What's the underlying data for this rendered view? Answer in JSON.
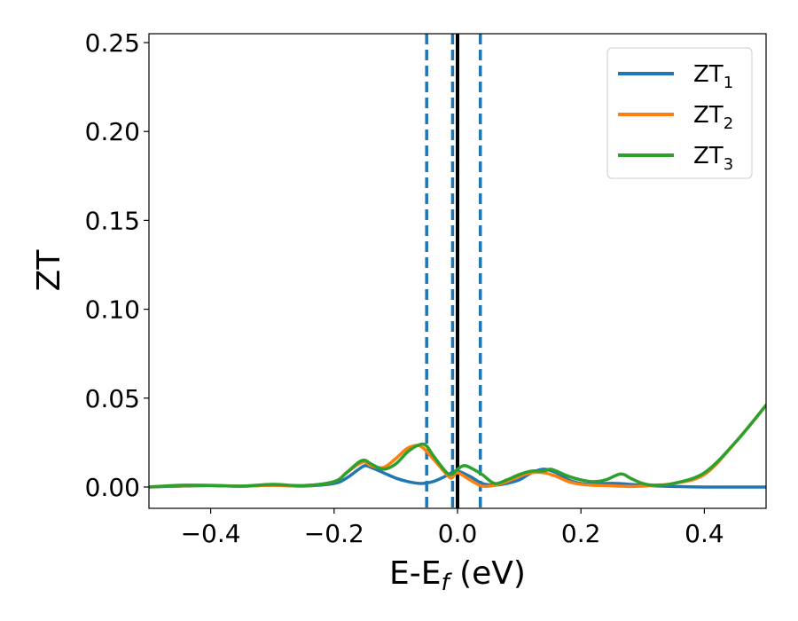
{
  "chart_data": {
    "type": "line",
    "xlabel": "E-E",
    "xlabel_sub": "f",
    "xlabel_unit": " (eV)",
    "ylabel": "ZT",
    "xlim": [
      -0.5,
      0.5
    ],
    "ylim": [
      -0.012,
      0.255
    ],
    "x_ticks": [
      -0.4,
      -0.2,
      0.0,
      0.2,
      0.4
    ],
    "x_tick_labels": [
      "−0.4",
      "−0.2",
      "0.0",
      "0.2",
      "0.4"
    ],
    "y_ticks": [
      0.0,
      0.05,
      0.1,
      0.15,
      0.2,
      0.25
    ],
    "y_tick_labels": [
      "0.00",
      "0.05",
      "0.10",
      "0.15",
      "0.20",
      "0.25"
    ],
    "grid": false,
    "legend_position": "top-right",
    "vertical_lines": [
      {
        "x": -0.05,
        "style": "dashed",
        "color": "#1f77b4"
      },
      {
        "x": -0.008,
        "style": "dashed",
        "color": "#1f77b4"
      },
      {
        "x": 0.037,
        "style": "dashed",
        "color": "#1f77b4"
      },
      {
        "x": 0.0,
        "style": "solid",
        "color": "#000000"
      }
    ],
    "series": [
      {
        "name": "ZT",
        "sub": "1",
        "color": "#1f77b4",
        "x": [
          -0.5,
          -0.45,
          -0.4,
          -0.35,
          -0.3,
          -0.25,
          -0.2,
          -0.18,
          -0.16,
          -0.15,
          -0.14,
          -0.12,
          -0.1,
          -0.08,
          -0.06,
          -0.04,
          -0.02,
          -0.01,
          0.0,
          0.02,
          0.04,
          0.06,
          0.08,
          0.1,
          0.12,
          0.14,
          0.16,
          0.18,
          0.2,
          0.22,
          0.24,
          0.26,
          0.28,
          0.3,
          0.35,
          0.4,
          0.45,
          0.5
        ],
        "y": [
          0.0,
          0.0005,
          0.0008,
          0.0005,
          0.001,
          0.0005,
          0.002,
          0.005,
          0.01,
          0.012,
          0.011,
          0.008,
          0.005,
          0.003,
          0.002,
          0.003,
          0.006,
          0.008,
          0.009,
          0.006,
          0.002,
          0.001,
          0.002,
          0.004,
          0.008,
          0.01,
          0.008,
          0.004,
          0.002,
          0.0015,
          0.002,
          0.002,
          0.0015,
          0.001,
          0.0003,
          0.0,
          0.0,
          0.0
        ]
      },
      {
        "name": "ZT",
        "sub": "2",
        "color": "#ff7f0e",
        "x": [
          -0.5,
          -0.45,
          -0.4,
          -0.35,
          -0.3,
          -0.25,
          -0.2,
          -0.18,
          -0.16,
          -0.15,
          -0.14,
          -0.12,
          -0.1,
          -0.08,
          -0.06,
          -0.04,
          -0.02,
          -0.01,
          0.0,
          0.02,
          0.04,
          0.06,
          0.08,
          0.1,
          0.12,
          0.14,
          0.16,
          0.18,
          0.2,
          0.22,
          0.24,
          0.26,
          0.28,
          0.3,
          0.32,
          0.35,
          0.4,
          0.45,
          0.5
        ],
        "y": [
          0.0,
          0.0008,
          0.001,
          0.0005,
          0.001,
          0.0006,
          0.003,
          0.008,
          0.013,
          0.014,
          0.012,
          0.011,
          0.016,
          0.022,
          0.023,
          0.016,
          0.008,
          0.005,
          0.008,
          0.004,
          0.0005,
          0.001,
          0.003,
          0.006,
          0.008,
          0.008,
          0.006,
          0.003,
          0.0015,
          0.001,
          0.0008,
          0.0005,
          0.0003,
          0.0005,
          0.001,
          0.002,
          0.007,
          0.025,
          0.046
        ]
      },
      {
        "name": "ZT",
        "sub": "3",
        "color": "#2ca02c",
        "x": [
          -0.5,
          -0.45,
          -0.4,
          -0.35,
          -0.3,
          -0.25,
          -0.2,
          -0.18,
          -0.16,
          -0.15,
          -0.14,
          -0.12,
          -0.1,
          -0.08,
          -0.06,
          -0.05,
          -0.04,
          -0.02,
          -0.01,
          0.0,
          0.01,
          0.02,
          0.04,
          0.06,
          0.08,
          0.1,
          0.12,
          0.14,
          0.15,
          0.16,
          0.18,
          0.2,
          0.22,
          0.24,
          0.26,
          0.27,
          0.28,
          0.3,
          0.32,
          0.35,
          0.4,
          0.45,
          0.5
        ],
        "y": [
          0.0,
          0.001,
          0.0008,
          0.0005,
          0.0015,
          0.0008,
          0.003,
          0.008,
          0.014,
          0.015,
          0.013,
          0.01,
          0.013,
          0.02,
          0.024,
          0.023,
          0.018,
          0.009,
          0.007,
          0.01,
          0.012,
          0.011,
          0.007,
          0.002,
          0.004,
          0.007,
          0.009,
          0.009,
          0.01,
          0.009,
          0.006,
          0.004,
          0.003,
          0.004,
          0.007,
          0.007,
          0.005,
          0.002,
          0.001,
          0.002,
          0.008,
          0.025,
          0.046
        ]
      }
    ]
  }
}
